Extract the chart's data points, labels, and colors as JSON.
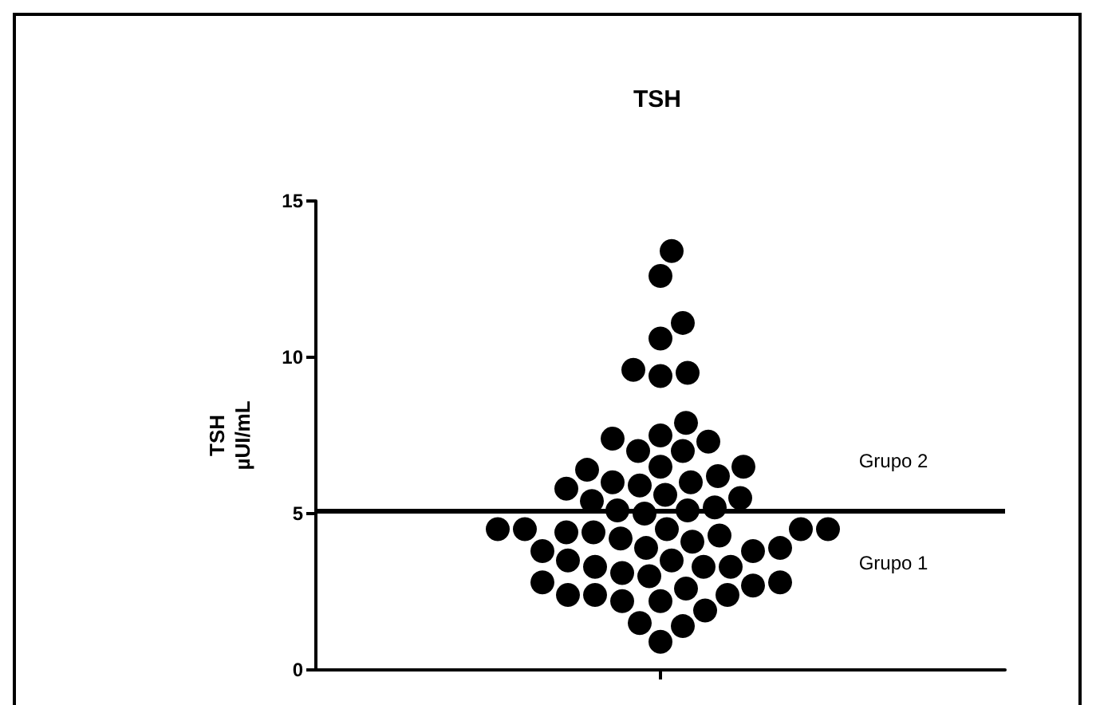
{
  "chart_data": {
    "type": "scatter",
    "title": "TSH",
    "ylabel": "TSH\nµUI/mL",
    "categories": [
      null
    ],
    "series": [
      {
        "color": "#000000",
        "x": [
          null,
          null,
          null,
          null,
          null,
          null,
          null,
          null,
          null,
          null,
          null,
          null,
          null,
          null,
          null,
          null,
          null,
          null,
          null,
          null,
          null,
          null,
          null,
          null,
          null,
          null,
          null,
          null,
          null,
          null,
          null,
          null,
          null,
          null,
          null,
          null,
          null,
          null,
          null,
          null,
          null,
          null,
          null,
          null,
          null,
          null,
          null,
          null,
          null,
          null,
          null,
          null,
          null,
          null,
          null,
          null,
          null,
          null,
          null,
          null,
          null,
          null
        ],
        "values": [
          13.4,
          12.6,
          11.1,
          10.6,
          9.5,
          9.4,
          9.6,
          7.5,
          7.3,
          7.0,
          7.0,
          7.4,
          7.9,
          6.5,
          6.4,
          6.0,
          6.0,
          6.2,
          6.5,
          5.9,
          5.6,
          5.4,
          5.1,
          5.0,
          5.1,
          5.2,
          5.5,
          5.8,
          4.5,
          4.5,
          4.5,
          4.4,
          4.2,
          4.1,
          4.3,
          4.4,
          4.5,
          4.5,
          3.9,
          3.8,
          3.5,
          3.3,
          3.3,
          3.0,
          3.1,
          3.3,
          3.5,
          3.8,
          3.9,
          2.8,
          2.7,
          2.4,
          2.4,
          2.2,
          1.9,
          2.2,
          2.4,
          2.6,
          2.8,
          1.5,
          1.4,
          0.9
        ]
      }
    ],
    "ylim": [
      0,
      15
    ],
    "yticks": [
      0,
      5,
      10,
      15
    ],
    "tick_labels": "y",
    "grid": false,
    "marker": "circle",
    "ref_lines": [
      {
        "axis": "y",
        "value": 5.1,
        "label": null,
        "color": "#000000"
      }
    ],
    "annotations": [
      "Grupo 2",
      "Grupo 1"
    ]
  }
}
